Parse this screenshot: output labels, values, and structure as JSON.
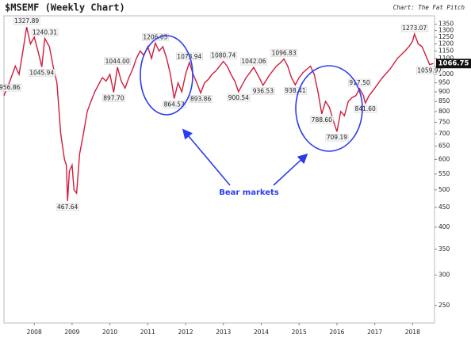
{
  "chart_data": {
    "type": "line",
    "title": "$MSEMF (Weekly Chart)",
    "subtitle": "Chart: The Fat Pitch",
    "annotation": "Bear markets",
    "log_scale": true,
    "grid": false,
    "xlim": [
      2007.2,
      2018.58
    ],
    "xticks": [
      2008,
      2009,
      2010,
      2011,
      2012,
      2013,
      2014,
      2015,
      2016,
      2017,
      2018
    ],
    "ylim": [
      225,
      1420
    ],
    "yticks": [
      1350,
      1300,
      1250,
      1200,
      1150,
      1100,
      1050,
      1000,
      950,
      900,
      850,
      800,
      750,
      700,
      650,
      600,
      550,
      500,
      450,
      400,
      350,
      300,
      250
    ],
    "series": [
      {
        "name": "$MSEMF",
        "color": "#d01c3c",
        "x": [
          2007.2,
          2007.35,
          2007.5,
          2007.6,
          2007.7,
          2007.8,
          2007.9,
          2008.0,
          2008.1,
          2008.2,
          2008.28,
          2008.4,
          2008.5,
          2008.6,
          2008.7,
          2008.8,
          2008.85,
          2008.88,
          2008.93,
          2009.0,
          2009.05,
          2009.12,
          2009.2,
          2009.3,
          2009.4,
          2009.5,
          2009.6,
          2009.7,
          2009.8,
          2009.9,
          2010.0,
          2010.1,
          2010.2,
          2010.3,
          2010.4,
          2010.5,
          2010.6,
          2010.7,
          2010.8,
          2010.9,
          2011.0,
          2011.1,
          2011.2,
          2011.3,
          2011.4,
          2011.5,
          2011.6,
          2011.7,
          2011.8,
          2011.9,
          2012.0,
          2012.1,
          2012.2,
          2012.3,
          2012.4,
          2012.5,
          2012.6,
          2012.7,
          2012.8,
          2012.9,
          2013.0,
          2013.1,
          2013.2,
          2013.3,
          2013.4,
          2013.5,
          2013.6,
          2013.7,
          2013.8,
          2013.9,
          2014.05,
          2014.2,
          2014.3,
          2014.4,
          2014.5,
          2014.6,
          2014.7,
          2014.8,
          2014.9,
          2015.0,
          2015.1,
          2015.2,
          2015.3,
          2015.4,
          2015.5,
          2015.6,
          2015.7,
          2015.8,
          2015.9,
          2016.0,
          2016.1,
          2016.2,
          2016.3,
          2016.4,
          2016.5,
          2016.6,
          2016.7,
          2016.75,
          2016.85,
          2017.0,
          2017.2,
          2017.4,
          2017.6,
          2017.8,
          2017.9,
          2018.0,
          2018.05,
          2018.15,
          2018.25,
          2018.35,
          2018.45,
          2018.55
        ],
        "values": [
          880,
          956.86,
          1050,
          1000,
          1150,
          1327.89,
          1200,
          1250,
          1150,
          1045.94,
          1240.31,
          1180,
          1050,
          950,
          700,
          600,
          580,
          467.64,
          560,
          580,
          500,
          490,
          620,
          700,
          800,
          850,
          900,
          940,
          980,
          960,
          1000,
          897.7,
          1044,
          960,
          920,
          980,
          1030,
          1100,
          1150,
          1120,
          1180,
          1100,
          1206.05,
          1150,
          1180,
          1100,
          1000,
          864.53,
          950,
          900,
          1000,
          1073.94,
          1000,
          950,
          893.86,
          950,
          970,
          1000,
          1020,
          1050,
          1080.74,
          1050,
          1000,
          960,
          900.54,
          940,
          980,
          1010,
          1042.06,
          1000,
          936.53,
          990,
          1020,
          1050,
          1070,
          1096.83,
          1050,
          980,
          938.41,
          980,
          1010,
          1030,
          1050,
          1000,
          900,
          788.6,
          850,
          820,
          760,
          709.19,
          800,
          780,
          850,
          870,
          880,
          917.5,
          880,
          841.6,
          880,
          920,
          980,
          1030,
          1100,
          1150,
          1180,
          1220,
          1273.07,
          1200,
          1180,
          1120,
          1059.97,
          1066.75
        ],
        "value_labels": [
          null,
          "956.86",
          null,
          null,
          null,
          "1327.89",
          null,
          null,
          null,
          "1045.94",
          "1240.31",
          null,
          null,
          null,
          null,
          null,
          null,
          "467.64",
          null,
          null,
          null,
          null,
          null,
          null,
          null,
          null,
          null,
          null,
          null,
          null,
          null,
          "897.70",
          "1044.00",
          null,
          null,
          null,
          null,
          null,
          null,
          null,
          null,
          null,
          "1206.05",
          null,
          null,
          null,
          null,
          "864.53",
          null,
          null,
          null,
          "1073.94",
          null,
          null,
          "893.86",
          null,
          null,
          null,
          null,
          null,
          "1080.74",
          null,
          null,
          null,
          "900.54",
          null,
          null,
          null,
          "1042.06",
          null,
          "936.53",
          null,
          null,
          null,
          null,
          "1096.83",
          null,
          null,
          "938.41",
          null,
          null,
          null,
          null,
          null,
          null,
          "788.60",
          null,
          null,
          null,
          "709.19",
          null,
          null,
          null,
          null,
          null,
          "917.50",
          null,
          "841.60",
          null,
          null,
          null,
          null,
          null,
          null,
          null,
          null,
          "1273.07",
          null,
          null,
          null,
          "1059.97",
          "1066.75"
        ]
      }
    ]
  }
}
